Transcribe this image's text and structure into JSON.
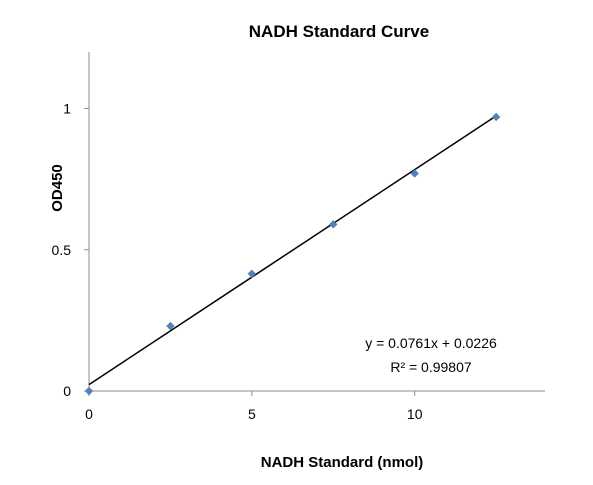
{
  "chart_data": {
    "type": "scatter",
    "title": "NADH Standard Curve",
    "xlabel": "NADH Standard (nmol)",
    "ylabel": "OD450",
    "xlim": [
      0,
      14
    ],
    "ylim": [
      0,
      1.2
    ],
    "xticks": [
      0,
      5,
      10
    ],
    "yticks": [
      0,
      0.5,
      1
    ],
    "x_tick_labels": [
      "0",
      "5",
      "10"
    ],
    "y_tick_labels": [
      "0",
      "0.5",
      "1"
    ],
    "grid": false,
    "legend": "none",
    "series": [
      {
        "x": [
          0,
          2.5,
          5,
          7.5,
          10,
          12.5
        ],
        "y": [
          0.0,
          0.23,
          0.415,
          0.59,
          0.77,
          0.97
        ],
        "color": "#4F81BD",
        "marker": "diamond"
      }
    ],
    "trendline": {
      "type": "linear",
      "slope": 0.0761,
      "intercept": 0.0226,
      "x_range": [
        0,
        12.5
      ],
      "color": "#000000"
    },
    "annotations": {
      "equation": "y = 0.0761x + 0.0226",
      "r_squared_label": "R² = 0.99807"
    }
  }
}
